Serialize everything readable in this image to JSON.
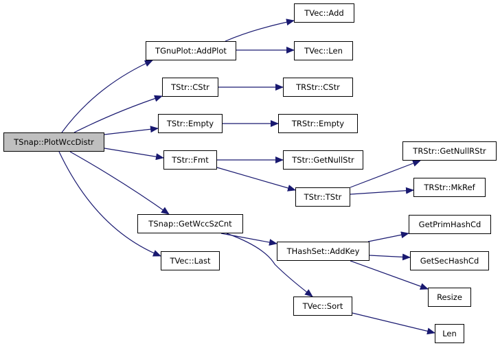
{
  "colors": {
    "edge": "#191970",
    "root_fill": "#bfbfbf",
    "node_fill": "#ffffff",
    "border": "#000000"
  },
  "nodes": {
    "plotwccdistr": "TSnap::PlotWccDistr",
    "addplot": "TGnuPlot::AddPlot",
    "tvec_add": "TVec::Add",
    "tvec_len": "TVec::Len",
    "tstr_cstr": "TStr::CStr",
    "trstr_cstr": "TRStr::CStr",
    "tstr_empty": "TStr::Empty",
    "trstr_empty": "TRStr::Empty",
    "tstr_fmt": "TStr::Fmt",
    "tstr_getnullstr": "TStr::GetNullStr",
    "trstr_getnullrstr": "TRStr::GetNullRStr",
    "tstr_tstr": "TStr::TStr",
    "trstr_mkref": "TRStr::MkRef",
    "getwccszcnt": "TSnap::GetWccSzCnt",
    "tvec_last": "TVec::Last",
    "hashset_addkey": "THashSet::AddKey",
    "getprimhashcd": "GetPrimHashCd",
    "getsechashcd": "GetSecHashCd",
    "resize": "Resize",
    "tvec_sort": "TVec::Sort",
    "len": "Len"
  },
  "edges": [
    [
      "plotwccdistr",
      "addplot"
    ],
    [
      "plotwccdistr",
      "tstr_cstr"
    ],
    [
      "plotwccdistr",
      "tstr_empty"
    ],
    [
      "plotwccdistr",
      "tstr_fmt"
    ],
    [
      "plotwccdistr",
      "getwccszcnt"
    ],
    [
      "plotwccdistr",
      "tvec_last"
    ],
    [
      "addplot",
      "tvec_add"
    ],
    [
      "addplot",
      "tvec_len"
    ],
    [
      "tstr_cstr",
      "trstr_cstr"
    ],
    [
      "tstr_empty",
      "trstr_empty"
    ],
    [
      "tstr_fmt",
      "tstr_getnullstr"
    ],
    [
      "tstr_fmt",
      "tstr_tstr"
    ],
    [
      "tstr_tstr",
      "trstr_getnullrstr"
    ],
    [
      "tstr_tstr",
      "trstr_mkref"
    ],
    [
      "getwccszcnt",
      "hashset_addkey"
    ],
    [
      "getwccszcnt",
      "tvec_sort"
    ],
    [
      "hashset_addkey",
      "getprimhashcd"
    ],
    [
      "hashset_addkey",
      "getsechashcd"
    ],
    [
      "hashset_addkey",
      "resize"
    ],
    [
      "tvec_sort",
      "len"
    ]
  ]
}
